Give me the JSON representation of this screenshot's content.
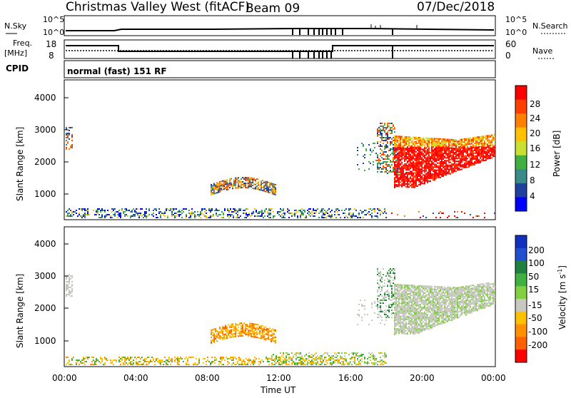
{
  "header": {
    "station": "Christmas Valley West (fitACF)",
    "beam": "Beam 09",
    "date": "07/Dec/2018"
  },
  "status_panels": {
    "nsky_label": "N.Sky",
    "nsearch_label": "N.Search",
    "freq_label_1": "Freq.",
    "freq_label_2": "[MHz]",
    "nave_label": "Nave",
    "cpid_label": "CPID",
    "cpid_value": "normal (fast) 151 RF",
    "noise_left_ticks": [
      "10^5",
      "10^0"
    ],
    "noise_right_ticks": [
      "10^5",
      "10^0"
    ],
    "freq_ticks": [
      "18",
      "8"
    ],
    "nave_ticks": [
      "60",
      "0"
    ]
  },
  "chart_data": [
    {
      "type": "heatmap",
      "name": "power",
      "ylabel": "Slant Range [km]",
      "yticks": [
        "4000",
        "3000",
        "2000",
        "1000"
      ],
      "ylim": [
        180,
        4500
      ],
      "xlabel": "Time UT",
      "xticks": [
        "00:00",
        "04:00",
        "08:00",
        "12:00",
        "16:00",
        "20:00",
        "00:00"
      ],
      "colorbar": {
        "label": "Power [dB]",
        "ticks": [
          "28",
          "24",
          "20",
          "16",
          "12",
          "8",
          "4"
        ],
        "colors": [
          "#ff0000",
          "#ff4000",
          "#ff8000",
          "#ffc000",
          "#c8e030",
          "#40b040",
          "#3a8a8a",
          "#2040a0",
          "#0000ff"
        ]
      }
    },
    {
      "type": "heatmap",
      "name": "velocity",
      "ylabel": "Slant Range [km]",
      "yticks": [
        "4000",
        "3000",
        "2000",
        "1000"
      ],
      "ylim": [
        180,
        4500
      ],
      "xlabel": "Time UT",
      "xticks": [
        "00:00",
        "04:00",
        "08:00",
        "12:00",
        "16:00",
        "20:00",
        "00:00"
      ],
      "colorbar": {
        "label_main": "Velocity [m s",
        "label_sup": "-1",
        "label_end": "]",
        "ticks": [
          "200",
          "100",
          "50",
          "15",
          "-15",
          "-50",
          "-100",
          "-200"
        ],
        "colors": [
          "#1030c0",
          "#2050d0",
          "#208040",
          "#40b040",
          "#80d040",
          "#c8c8c0",
          "#ffc000",
          "#ff9000",
          "#ff6000",
          "#ff0000"
        ]
      }
    }
  ],
  "footer": {
    "xlabel": "Time UT"
  }
}
